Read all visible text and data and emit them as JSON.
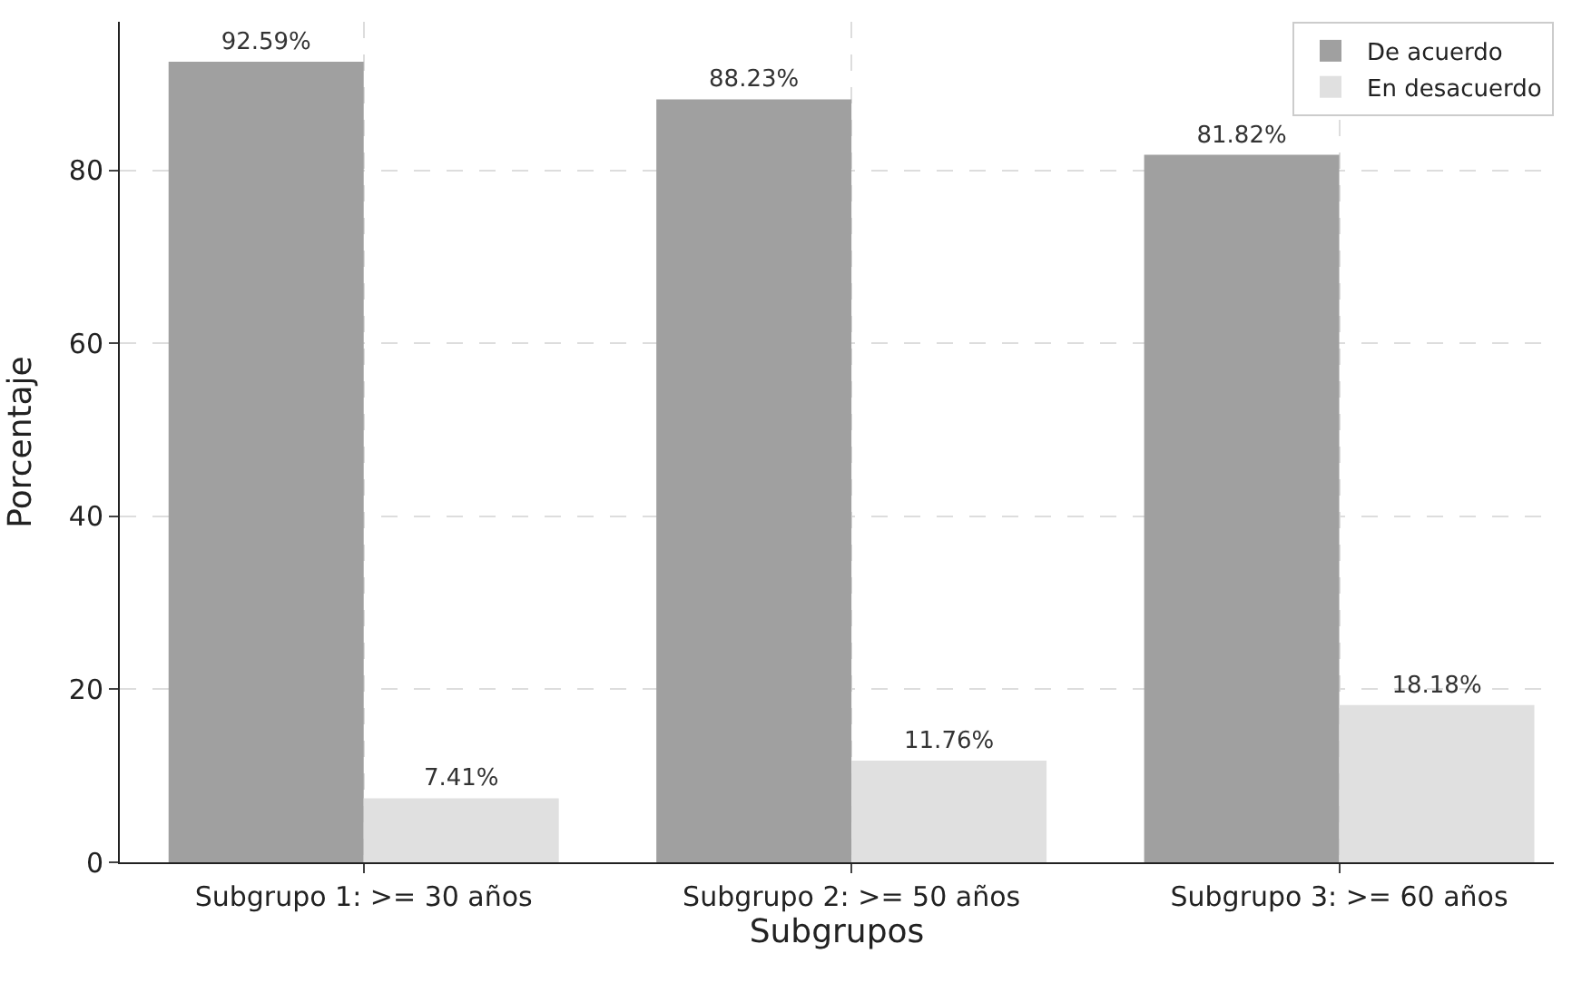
{
  "chart_data": {
    "type": "bar",
    "xlabel": "Subgrupos",
    "ylabel": "Porcentaje",
    "categories": [
      "Subgrupo 1: >= 30 años",
      "Subgrupo 2: >= 50 años",
      "Subgrupo 3: >= 60 años"
    ],
    "series": [
      {
        "name": "De acuerdo",
        "color": "#a0a0a0",
        "values": [
          92.59,
          88.23,
          81.82
        ],
        "value_labels": [
          "92.59%",
          "88.23%",
          "81.82%"
        ]
      },
      {
        "name": "En desacuerdo",
        "color": "#e0e0e0",
        "values": [
          7.41,
          11.76,
          18.18
        ],
        "value_labels": [
          "7.41%",
          "11.76%",
          "18.18%"
        ]
      }
    ],
    "ylim": [
      0,
      97.2
    ],
    "yticks": [
      0,
      20,
      40,
      60,
      80
    ],
    "grid": true,
    "legend": "top right"
  }
}
